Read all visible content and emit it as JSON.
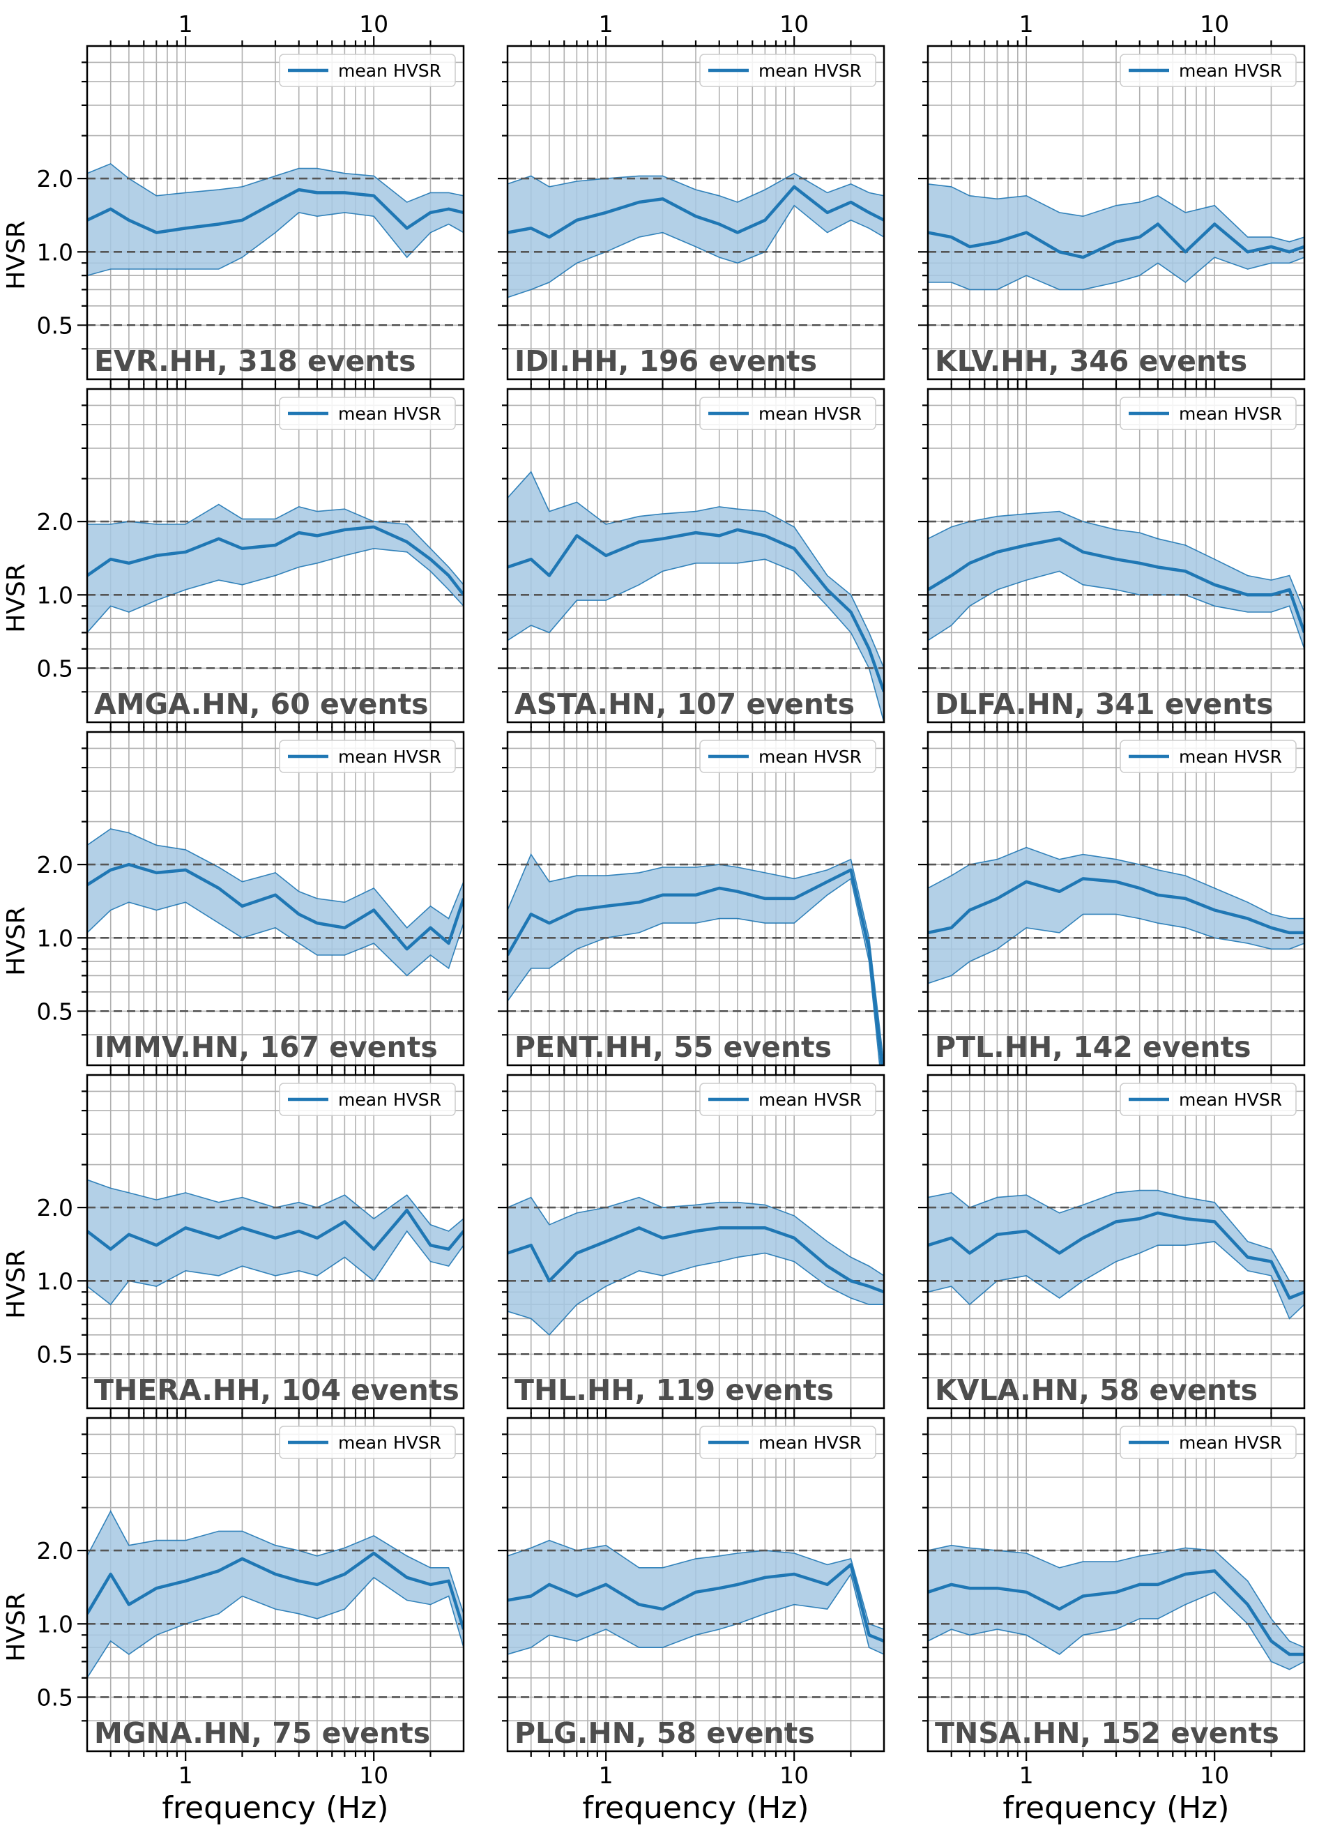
{
  "colors": {
    "mean": "#1f77b4",
    "band": "#a6c8e3",
    "grid": "#b0b0b0",
    "ref": "#555555",
    "label": "#4d4d4d"
  },
  "chart_data": {
    "type": "line",
    "layout": "grid",
    "rows": 5,
    "cols": 3,
    "xlabel": "frequency (Hz)",
    "ylabel": "HVSR",
    "x_scale": "log",
    "y_scale": "log",
    "xlim": [
      0.3,
      30
    ],
    "ylim": [
      0.3,
      7
    ],
    "x_ticks": [
      1,
      10
    ],
    "x_tick_labels": [
      "1",
      "10"
    ],
    "y_ticks": [
      0.5,
      1.0,
      2.0
    ],
    "y_tick_labels": [
      "0.5",
      "1.0",
      "2.0"
    ],
    "reference_lines": [
      0.5,
      1.0,
      2.0
    ],
    "grid": true,
    "legend": {
      "label": "mean HVSR",
      "position": "top-right"
    },
    "x": [
      0.3,
      0.4,
      0.5,
      0.7,
      1.0,
      1.5,
      2.0,
      3.0,
      4.0,
      5.0,
      7.0,
      10.0,
      15.0,
      20.0,
      25.0,
      30.0
    ],
    "panels": [
      {
        "label": "EVR.HH, 318 events",
        "mean": [
          1.35,
          1.5,
          1.35,
          1.2,
          1.25,
          1.3,
          1.35,
          1.6,
          1.8,
          1.75,
          1.75,
          1.7,
          1.25,
          1.45,
          1.5,
          1.45
        ],
        "upper": [
          2.1,
          2.3,
          2.0,
          1.7,
          1.75,
          1.8,
          1.85,
          2.05,
          2.2,
          2.2,
          2.1,
          2.05,
          1.6,
          1.75,
          1.75,
          1.7
        ],
        "lower": [
          0.8,
          0.85,
          0.85,
          0.85,
          0.85,
          0.85,
          0.95,
          1.2,
          1.45,
          1.4,
          1.45,
          1.4,
          0.95,
          1.2,
          1.3,
          1.2
        ]
      },
      {
        "label": "IDI.HH, 196 events",
        "mean": [
          1.2,
          1.25,
          1.15,
          1.35,
          1.45,
          1.6,
          1.65,
          1.4,
          1.3,
          1.2,
          1.35,
          1.85,
          1.45,
          1.6,
          1.45,
          1.35
        ],
        "upper": [
          1.9,
          2.05,
          1.85,
          1.95,
          2.0,
          2.05,
          2.05,
          1.8,
          1.7,
          1.6,
          1.8,
          2.1,
          1.75,
          1.9,
          1.75,
          1.7
        ],
        "lower": [
          0.65,
          0.7,
          0.75,
          0.9,
          1.0,
          1.15,
          1.2,
          1.05,
          0.95,
          0.9,
          1.0,
          1.55,
          1.2,
          1.35,
          1.25,
          1.15
        ]
      },
      {
        "label": "KLV.HH, 346 events",
        "mean": [
          1.2,
          1.15,
          1.05,
          1.1,
          1.2,
          1.0,
          0.95,
          1.1,
          1.15,
          1.3,
          1.0,
          1.3,
          1.0,
          1.05,
          1.0,
          1.05
        ],
        "upper": [
          1.9,
          1.85,
          1.7,
          1.65,
          1.7,
          1.45,
          1.4,
          1.55,
          1.6,
          1.7,
          1.45,
          1.55,
          1.15,
          1.15,
          1.1,
          1.15
        ],
        "lower": [
          0.75,
          0.75,
          0.7,
          0.7,
          0.8,
          0.7,
          0.7,
          0.75,
          0.8,
          0.9,
          0.75,
          0.95,
          0.85,
          0.9,
          0.9,
          0.95
        ]
      },
      {
        "label": "AMGA.HN,  60 events",
        "mean": [
          1.2,
          1.4,
          1.35,
          1.45,
          1.5,
          1.7,
          1.55,
          1.6,
          1.8,
          1.75,
          1.85,
          1.9,
          1.65,
          1.4,
          1.2,
          1.0
        ],
        "upper": [
          1.95,
          1.95,
          2.0,
          1.95,
          1.95,
          2.35,
          2.05,
          2.05,
          2.3,
          2.2,
          2.25,
          2.0,
          1.95,
          1.55,
          1.3,
          1.1
        ],
        "lower": [
          0.7,
          0.9,
          0.85,
          0.95,
          1.05,
          1.15,
          1.1,
          1.2,
          1.3,
          1.35,
          1.45,
          1.55,
          1.5,
          1.25,
          1.05,
          0.9
        ]
      },
      {
        "label": "ASTA.HN, 107 events",
        "mean": [
          1.3,
          1.4,
          1.2,
          1.75,
          1.45,
          1.65,
          1.7,
          1.8,
          1.75,
          1.85,
          1.75,
          1.55,
          1.05,
          0.85,
          0.6,
          0.4
        ],
        "upper": [
          2.5,
          3.2,
          2.2,
          2.4,
          1.95,
          2.1,
          2.15,
          2.2,
          2.3,
          2.25,
          2.2,
          1.9,
          1.2,
          1.0,
          0.7,
          0.5
        ],
        "lower": [
          0.65,
          0.75,
          0.7,
          0.95,
          0.95,
          1.1,
          1.25,
          1.35,
          1.35,
          1.35,
          1.4,
          1.25,
          0.9,
          0.7,
          0.5,
          0.3
        ]
      },
      {
        "label": "DLFA.HN, 341 events",
        "mean": [
          1.05,
          1.2,
          1.35,
          1.5,
          1.6,
          1.7,
          1.5,
          1.4,
          1.35,
          1.3,
          1.25,
          1.1,
          1.0,
          1.0,
          1.05,
          0.7
        ],
        "upper": [
          1.7,
          1.9,
          2.0,
          2.1,
          2.15,
          2.2,
          2.0,
          1.85,
          1.8,
          1.7,
          1.6,
          1.4,
          1.2,
          1.15,
          1.2,
          0.85
        ],
        "lower": [
          0.65,
          0.75,
          0.9,
          1.05,
          1.15,
          1.25,
          1.1,
          1.05,
          1.0,
          1.0,
          1.0,
          0.9,
          0.85,
          0.85,
          0.9,
          0.6
        ]
      },
      {
        "label": "IMMV.HN, 167 events",
        "mean": [
          1.65,
          1.9,
          2.0,
          1.85,
          1.9,
          1.6,
          1.35,
          1.5,
          1.25,
          1.15,
          1.1,
          1.3,
          0.9,
          1.1,
          0.95,
          1.45
        ],
        "upper": [
          2.4,
          2.8,
          2.7,
          2.4,
          2.3,
          1.95,
          1.7,
          1.85,
          1.55,
          1.45,
          1.4,
          1.6,
          1.1,
          1.35,
          1.2,
          1.7
        ],
        "lower": [
          1.05,
          1.3,
          1.4,
          1.3,
          1.4,
          1.15,
          1.0,
          1.1,
          0.95,
          0.85,
          0.85,
          0.95,
          0.7,
          0.85,
          0.75,
          1.15
        ]
      },
      {
        "label": "PENT.HH,  55 events",
        "mean": [
          0.85,
          1.25,
          1.15,
          1.3,
          1.35,
          1.4,
          1.5,
          1.5,
          1.6,
          1.55,
          1.45,
          1.45,
          1.7,
          1.9,
          0.9,
          0.25
        ],
        "upper": [
          1.3,
          2.2,
          1.7,
          1.8,
          1.8,
          1.85,
          1.95,
          1.95,
          2.0,
          1.95,
          1.85,
          1.75,
          1.9,
          2.1,
          1.0,
          0.3
        ],
        "lower": [
          0.55,
          0.75,
          0.75,
          0.9,
          1.0,
          1.05,
          1.15,
          1.15,
          1.2,
          1.2,
          1.15,
          1.15,
          1.5,
          1.75,
          0.8,
          0.2
        ]
      },
      {
        "label": "PTL.HH, 142 events",
        "mean": [
          1.05,
          1.1,
          1.3,
          1.45,
          1.7,
          1.55,
          1.75,
          1.7,
          1.6,
          1.5,
          1.45,
          1.3,
          1.2,
          1.1,
          1.05,
          1.05
        ],
        "upper": [
          1.6,
          1.8,
          2.0,
          2.1,
          2.35,
          2.1,
          2.2,
          2.1,
          2.0,
          1.9,
          1.8,
          1.6,
          1.4,
          1.25,
          1.2,
          1.2
        ],
        "lower": [
          0.65,
          0.7,
          0.8,
          0.9,
          1.1,
          1.05,
          1.25,
          1.25,
          1.2,
          1.15,
          1.1,
          1.0,
          0.95,
          0.9,
          0.9,
          0.95
        ]
      },
      {
        "label": "THERA.HH, 104 events",
        "mean": [
          1.6,
          1.35,
          1.55,
          1.4,
          1.65,
          1.5,
          1.65,
          1.5,
          1.6,
          1.5,
          1.75,
          1.35,
          1.95,
          1.4,
          1.35,
          1.6
        ],
        "upper": [
          2.6,
          2.4,
          2.3,
          2.15,
          2.3,
          2.1,
          2.2,
          2.0,
          2.1,
          2.0,
          2.25,
          1.8,
          2.25,
          1.7,
          1.6,
          1.8
        ],
        "lower": [
          0.95,
          0.8,
          1.0,
          0.95,
          1.1,
          1.05,
          1.15,
          1.05,
          1.1,
          1.05,
          1.25,
          1.0,
          1.6,
          1.2,
          1.15,
          1.4
        ]
      },
      {
        "label": "THL.HH, 119 events",
        "mean": [
          1.3,
          1.4,
          1.0,
          1.3,
          1.45,
          1.65,
          1.5,
          1.6,
          1.65,
          1.65,
          1.65,
          1.5,
          1.15,
          1.0,
          0.95,
          0.9
        ],
        "upper": [
          2.0,
          2.2,
          1.7,
          1.9,
          2.0,
          2.2,
          2.0,
          2.05,
          2.1,
          2.1,
          2.05,
          1.85,
          1.45,
          1.25,
          1.15,
          1.05
        ],
        "lower": [
          0.75,
          0.7,
          0.6,
          0.8,
          0.95,
          1.1,
          1.05,
          1.15,
          1.2,
          1.25,
          1.3,
          1.2,
          0.95,
          0.85,
          0.8,
          0.8
        ]
      },
      {
        "label": "KVLA.HN,  58 events",
        "mean": [
          1.4,
          1.5,
          1.3,
          1.55,
          1.6,
          1.3,
          1.5,
          1.75,
          1.8,
          1.9,
          1.8,
          1.75,
          1.25,
          1.2,
          0.85,
          0.9
        ],
        "upper": [
          2.2,
          2.3,
          2.0,
          2.2,
          2.25,
          1.9,
          2.05,
          2.3,
          2.35,
          2.35,
          2.2,
          2.1,
          1.45,
          1.35,
          1.0,
          1.0
        ],
        "lower": [
          0.9,
          0.95,
          0.8,
          1.0,
          1.05,
          0.85,
          1.0,
          1.2,
          1.3,
          1.4,
          1.4,
          1.45,
          1.1,
          1.05,
          0.7,
          0.8
        ]
      },
      {
        "label": "MGNA.HN,  75 events",
        "mean": [
          1.1,
          1.6,
          1.2,
          1.4,
          1.5,
          1.65,
          1.85,
          1.6,
          1.5,
          1.45,
          1.6,
          1.95,
          1.55,
          1.45,
          1.5,
          0.95
        ],
        "upper": [
          1.9,
          2.9,
          2.1,
          2.2,
          2.2,
          2.4,
          2.4,
          2.1,
          2.0,
          1.9,
          2.05,
          2.3,
          1.9,
          1.7,
          1.7,
          1.1
        ],
        "lower": [
          0.6,
          0.85,
          0.75,
          0.9,
          1.0,
          1.1,
          1.3,
          1.15,
          1.1,
          1.05,
          1.15,
          1.55,
          1.25,
          1.2,
          1.3,
          0.8
        ]
      },
      {
        "label": "PLG.HN,  58 events",
        "mean": [
          1.25,
          1.3,
          1.45,
          1.3,
          1.45,
          1.2,
          1.15,
          1.35,
          1.4,
          1.45,
          1.55,
          1.6,
          1.45,
          1.75,
          0.9,
          0.85
        ],
        "upper": [
          1.9,
          2.05,
          2.2,
          2.0,
          2.1,
          1.7,
          1.7,
          1.85,
          1.9,
          1.95,
          2.0,
          1.95,
          1.75,
          1.85,
          1.0,
          0.95
        ],
        "lower": [
          0.75,
          0.8,
          0.9,
          0.85,
          0.95,
          0.8,
          0.8,
          0.9,
          0.95,
          1.0,
          1.1,
          1.2,
          1.15,
          1.6,
          0.8,
          0.75
        ]
      },
      {
        "label": "TNSA.HN, 152 events",
        "mean": [
          1.35,
          1.45,
          1.4,
          1.4,
          1.35,
          1.15,
          1.3,
          1.35,
          1.45,
          1.45,
          1.6,
          1.65,
          1.2,
          0.85,
          0.75,
          0.75
        ],
        "upper": [
          2.0,
          2.1,
          2.05,
          2.0,
          1.95,
          1.7,
          1.8,
          1.8,
          1.9,
          1.95,
          2.05,
          2.0,
          1.5,
          1.05,
          0.85,
          0.8
        ],
        "lower": [
          0.85,
          0.95,
          0.9,
          0.95,
          0.9,
          0.75,
          0.9,
          0.95,
          1.05,
          1.05,
          1.2,
          1.35,
          1.0,
          0.7,
          0.65,
          0.7
        ]
      }
    ]
  }
}
